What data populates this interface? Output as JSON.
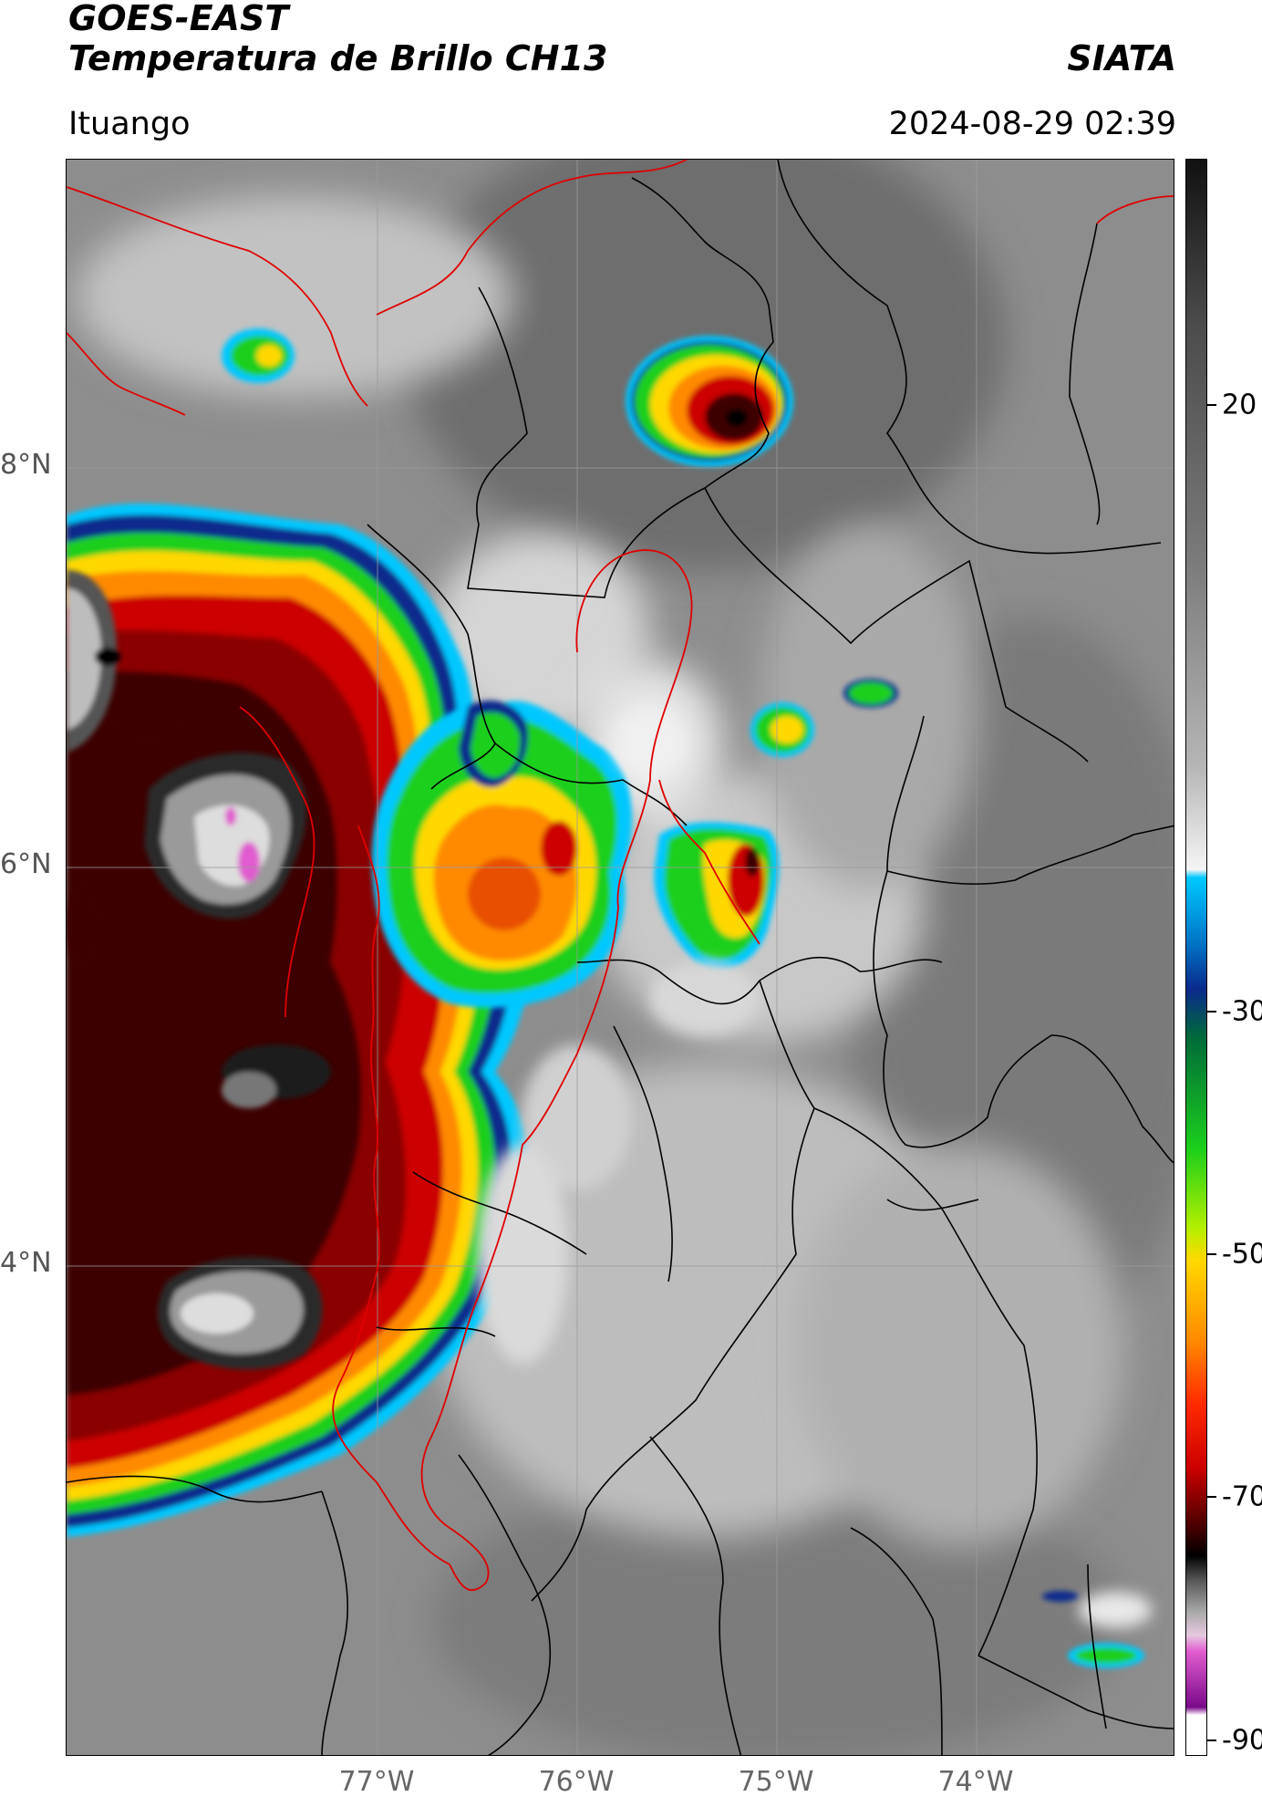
{
  "header": {
    "title_line1": "GOES-EAST",
    "title_line2": "Temperatura de Brillo CH13",
    "brand": "SIATA",
    "location": "Ituango",
    "datetime": "2024-08-29 02:39"
  },
  "axes": {
    "y_ticks": [
      "8°N",
      "6°N",
      "4°N"
    ],
    "x_ticks": [
      "77°W",
      "76°W",
      "75°W",
      "74°W"
    ]
  },
  "colorbar": {
    "ticks": [
      "20",
      "-30",
      "-50",
      "-70",
      "-90"
    ],
    "range": [
      -90,
      35
    ],
    "colors": {
      "warm": "#6a6a6a",
      "light": "#e2e2e2",
      "cyan": "#00c8ff",
      "blue": "#0a2a8c",
      "green": "#1bcf1b",
      "yellow": "#ffd800",
      "orange": "#ff8a00",
      "red": "#cc0000",
      "darkred": "#3c0000",
      "black": "#000000",
      "pink": "#e05ccf",
      "purple": "#7a0a8a"
    }
  },
  "map": {
    "lon_range": [
      -78.55,
      -73.05
    ],
    "lat_range": [
      2.5,
      9.5
    ],
    "background_color": "#8c8c8c",
    "border_color": "#000000",
    "highlight_border_color": "#e00000"
  }
}
